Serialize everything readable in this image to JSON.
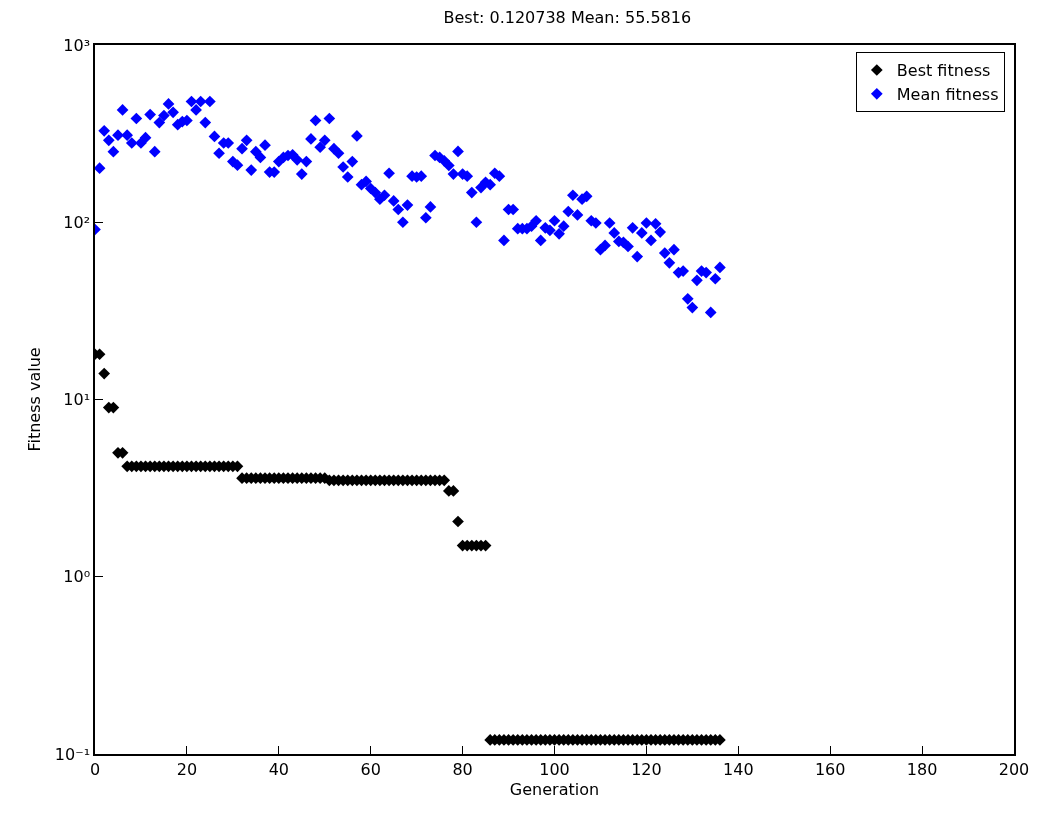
{
  "chart_data": {
    "type": "scatter",
    "title": "Best: 0.120738 Mean: 55.5816",
    "xlabel": "Generation",
    "ylabel": "Fitness value",
    "x": [
      0,
      1,
      2,
      3,
      4,
      5,
      6,
      7,
      8,
      9,
      10,
      11,
      12,
      13,
      14,
      15,
      16,
      17,
      18,
      19,
      20,
      21,
      22,
      23,
      24,
      25,
      26,
      27,
      28,
      29,
      30,
      31,
      32,
      33,
      34,
      35,
      36,
      37,
      38,
      39,
      40,
      41,
      42,
      43,
      44,
      45,
      46,
      47,
      48,
      49,
      50,
      51,
      52,
      53,
      54,
      55,
      56,
      57,
      58,
      59,
      60,
      61,
      62,
      63,
      64,
      65,
      66,
      67,
      68,
      69,
      70,
      71,
      72,
      73,
      74,
      75,
      76,
      77,
      78,
      79,
      80,
      81,
      82,
      83,
      84,
      85,
      86,
      87,
      88,
      89,
      90,
      91,
      92,
      93,
      94,
      95,
      96,
      97,
      98,
      99,
      100,
      101,
      102,
      103,
      104,
      105,
      106,
      107,
      108,
      109,
      110,
      111,
      112,
      113,
      114,
      115,
      116,
      117,
      118,
      119,
      120,
      121,
      122,
      123,
      124,
      125,
      126,
      127,
      128,
      129,
      130,
      131,
      132,
      133,
      134,
      135,
      136
    ],
    "series": [
      {
        "name": "Best fitness",
        "color": "#000000",
        "values": [
          18,
          18,
          14,
          9,
          9,
          5,
          5,
          4.2,
          4.2,
          4.2,
          4.2,
          4.2,
          4.2,
          4.2,
          4.2,
          4.2,
          4.2,
          4.2,
          4.2,
          4.2,
          4.2,
          4.2,
          4.2,
          4.2,
          4.2,
          4.2,
          4.2,
          4.2,
          4.2,
          4.2,
          4.2,
          4.2,
          3.6,
          3.6,
          3.6,
          3.6,
          3.6,
          3.6,
          3.6,
          3.6,
          3.6,
          3.6,
          3.6,
          3.6,
          3.6,
          3.6,
          3.6,
          3.6,
          3.6,
          3.6,
          3.6,
          3.5,
          3.5,
          3.5,
          3.5,
          3.5,
          3.5,
          3.5,
          3.5,
          3.5,
          3.5,
          3.5,
          3.5,
          3.5,
          3.5,
          3.5,
          3.5,
          3.5,
          3.5,
          3.5,
          3.5,
          3.5,
          3.5,
          3.5,
          3.5,
          3.5,
          3.5,
          3.05,
          3.05,
          2.05,
          1.5,
          1.5,
          1.5,
          1.5,
          1.5,
          1.5,
          0.12,
          0.12,
          0.12,
          0.12,
          0.12,
          0.12,
          0.12,
          0.12,
          0.12,
          0.12,
          0.12,
          0.12,
          0.12,
          0.12,
          0.12,
          0.12,
          0.12,
          0.12,
          0.12,
          0.12,
          0.12,
          0.12,
          0.12,
          0.12,
          0.12,
          0.12,
          0.12,
          0.12,
          0.12,
          0.12,
          0.12,
          0.12,
          0.12,
          0.12,
          0.12,
          0.12,
          0.12,
          0.12,
          0.12,
          0.12,
          0.12,
          0.12,
          0.12,
          0.12,
          0.12,
          0.12,
          0.12,
          0.12,
          0.12,
          0.12,
          0.12
        ]
      },
      {
        "name": "Mean fitness",
        "color": "#0000ff",
        "values": [
          91,
          202,
          328,
          290,
          250,
          310,
          430,
          310,
          280,
          385,
          280,
          300,
          405,
          250,
          365,
          400,
          465,
          417,
          355,
          370,
          375,
          480,
          430,
          480,
          365,
          480,
          305,
          245,
          280,
          280,
          220,
          210,
          260,
          290,
          197,
          250,
          232,
          272,
          192,
          192,
          220,
          232,
          238,
          240,
          225,
          187,
          220,
          295,
          375,
          265,
          290,
          385,
          260,
          245,
          205,
          180,
          220,
          307,
          163,
          170,
          155,
          147,
          135,
          142,
          189,
          132,
          118,
          100,
          125,
          182,
          180,
          182,
          106,
          122,
          238,
          232,
          222,
          209,
          187,
          251,
          187,
          182,
          147,
          100,
          157,
          168,
          163,
          189,
          182,
          79,
          118,
          118,
          92,
          92,
          92,
          95,
          102,
          79,
          93,
          90,
          102,
          86,
          95,
          115,
          142,
          110,
          135,
          140,
          102,
          99,
          70,
          74,
          99,
          87,
          78,
          77,
          73,
          93,
          64,
          87,
          99,
          79,
          98,
          88,
          67,
          59,
          70,
          52,
          53,
          37,
          33,
          47,
          53,
          52,
          31,
          48,
          55.6
        ]
      }
    ],
    "xlim": [
      0,
      200
    ],
    "xticks": [
      0,
      20,
      40,
      60,
      80,
      100,
      120,
      140,
      160,
      180,
      200
    ],
    "ylim": [
      0.1,
      1000
    ],
    "yticks": [
      {
        "value": 0.1,
        "label": "10⁻¹"
      },
      {
        "value": 1,
        "label": "10⁰"
      },
      {
        "value": 10,
        "label": "10¹"
      },
      {
        "value": 100,
        "label": "10²"
      },
      {
        "value": 1000,
        "label": "10³"
      }
    ],
    "log": "y",
    "legend": "top right",
    "marker": "diamond"
  }
}
